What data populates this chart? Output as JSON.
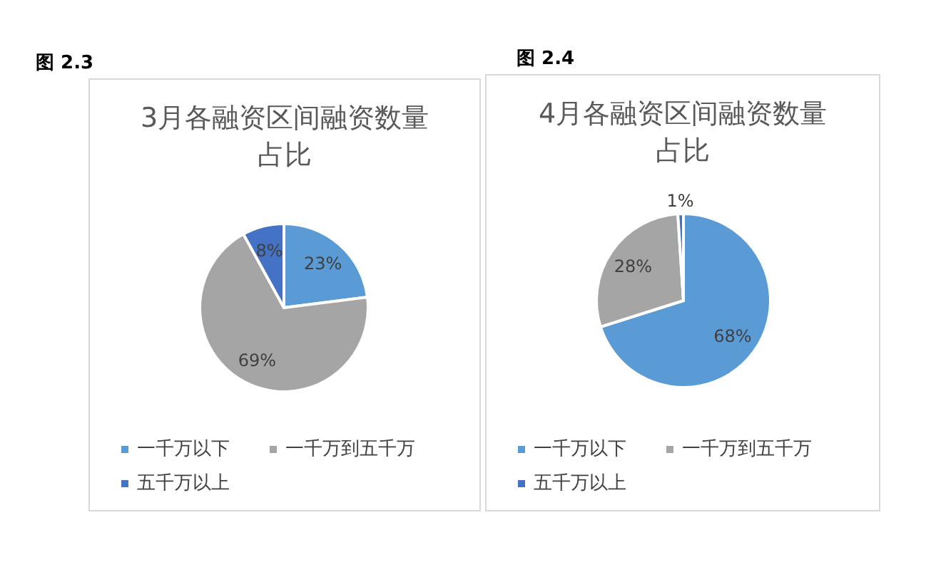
{
  "chart_data": [
    {
      "type": "pie",
      "title": "3月各融资区间融资数量占比",
      "annotations": [
        "图 2.3"
      ],
      "categories": [
        "一千万以下",
        "一千万到五千万",
        "五千万以上"
      ],
      "values": [
        23,
        69,
        8
      ],
      "value_labels": [
        "23%",
        "69%",
        "8%"
      ],
      "colors": [
        "#5b9bd5",
        "#a5a5a5",
        "#4472c4"
      ],
      "legend": "bottom"
    },
    {
      "type": "pie",
      "title": "4月各融资区间融资数量占比",
      "annotations": [
        "图 2.4"
      ],
      "categories": [
        "一千万以下",
        "一千万到五千万",
        "五千万以上"
      ],
      "values": [
        68,
        28,
        1
      ],
      "value_labels": [
        "68%",
        "28%",
        "1%"
      ],
      "colors": [
        "#5b9bd5",
        "#a5a5a5",
        "#4472c4"
      ],
      "legend": "bottom"
    }
  ]
}
